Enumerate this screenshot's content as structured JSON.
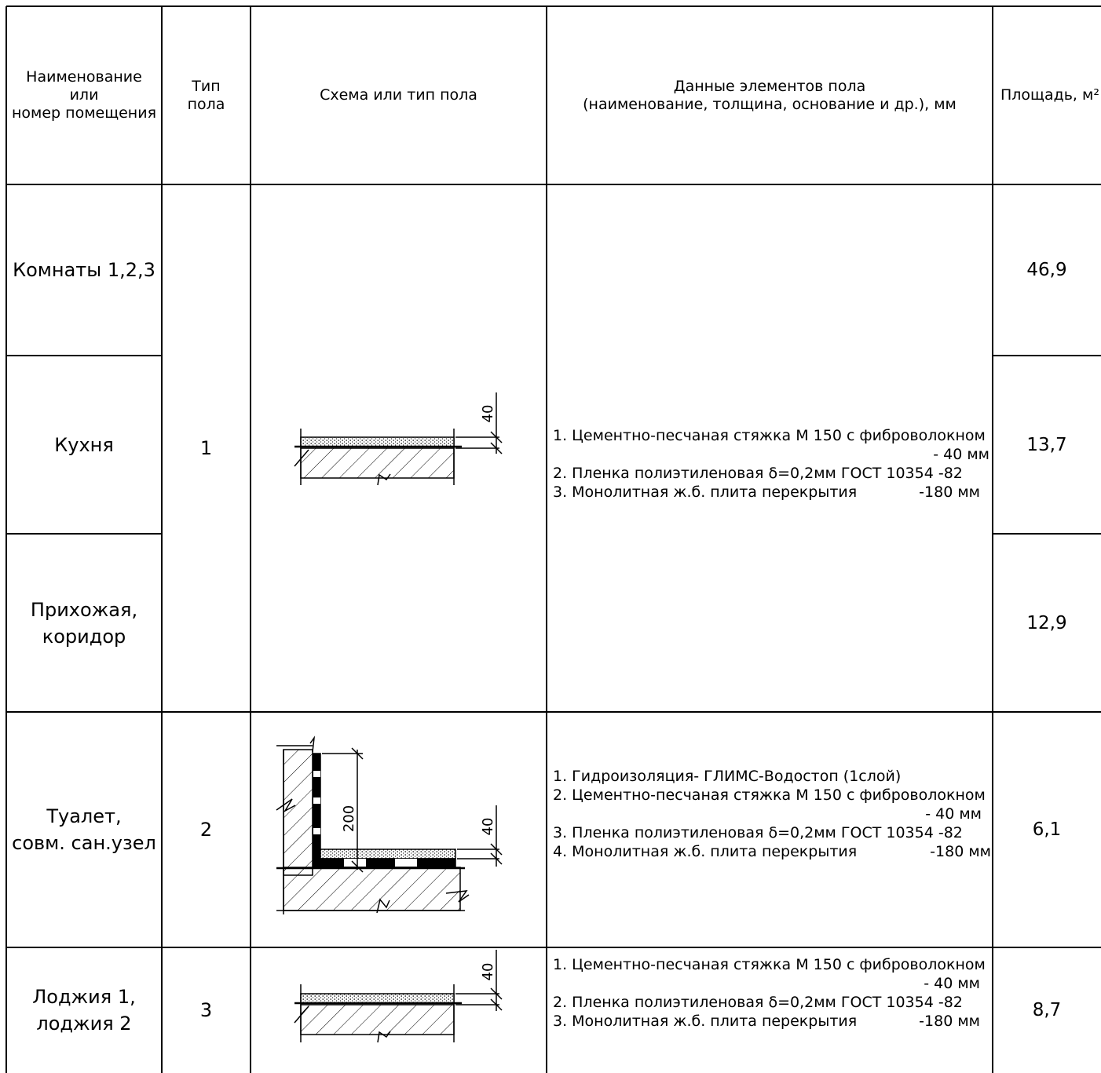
{
  "header": {
    "name": "Наименование\nили\nномер помещения",
    "type": "Тип\nпола",
    "scheme": "Схема или тип пола",
    "data": "Данные элементов пола\n(наименование, толщина, основание и др.), мм",
    "area": "Площадь, м²"
  },
  "rooms": [
    {
      "name": "Комнаты 1,2,3",
      "area": "46,9"
    },
    {
      "name": "Кухня",
      "area": "13,7"
    },
    {
      "name": "Прихожая,\nкоридор",
      "area": "12,9"
    },
    {
      "name": "Туалет,\nсовм. сан.узел",
      "area": "6,1"
    },
    {
      "name": "Лоджия 1,\nлоджия 2",
      "area": "8,7"
    }
  ],
  "types": {
    "t1": "1",
    "t2": "2",
    "t3": "3"
  },
  "layers": {
    "t1": {
      "l1": "1. Цементно-песчаная стяжка М 150 с фиброволокном",
      "l1b": "- 40 мм",
      "l2": "2. Пленка полиэтиленовая δ=0,2мм ГОСТ 10354 -82",
      "l3": "3. Монолитная ж.б. плита перекрытия",
      "l3b": "-180 мм"
    },
    "t2": {
      "l1": "1. Гидроизоляция- ГЛИМС-Водостоп (1слой)",
      "l2": "2. Цементно-песчаная стяжка М 150 с фиброволокном",
      "l2b": "- 40 мм",
      "l3": "3. Пленка полиэтиленовая δ=0,2мм ГОСТ 10354 -82",
      "l4": "4. Монолитная ж.б. плита перекрытия",
      "l4b": "-180 мм"
    },
    "t3": {
      "l1": "1. Цементно-песчаная стяжка М 150 с фиброволокном",
      "l1b": "- 40 мм",
      "l2": "2. Пленка полиэтиленовая δ=0,2мм ГОСТ 10354 -82",
      "l3": "3. Монолитная ж.б. плита перекрытия",
      "l3b": "-180 мм"
    }
  },
  "dims": {
    "screed": "40",
    "wall": "200"
  }
}
